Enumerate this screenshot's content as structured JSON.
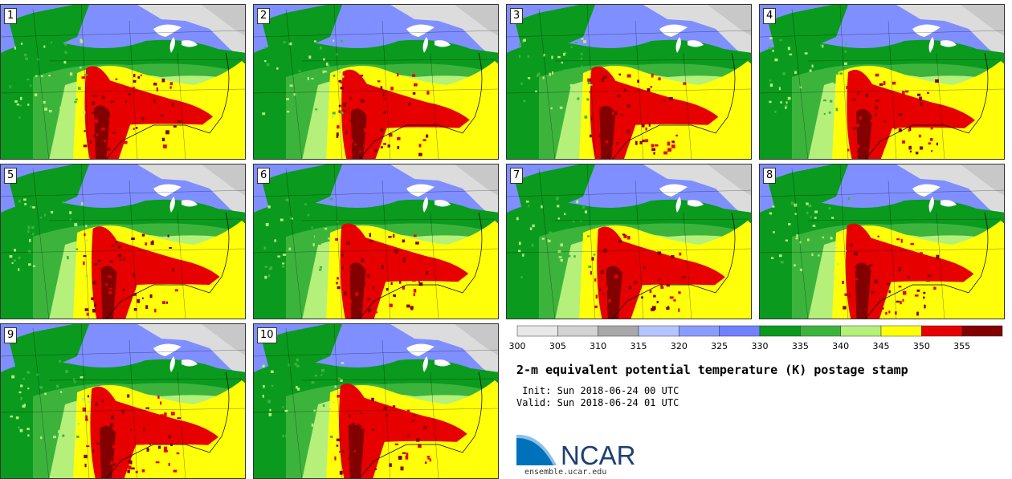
{
  "title": "2-m equivalent potential temperature (K) postage stamp",
  "init": " Init: Sun 2018-06-24 00 UTC",
  "valid": "Valid: Sun 2018-06-24 01 UTC",
  "logo": {
    "text": "NCAR",
    "url": "ensemble.ucar.edu"
  },
  "members": [
    "1",
    "2",
    "3",
    "4",
    "5",
    "6",
    "7",
    "8",
    "9",
    "10"
  ],
  "colorbar": {
    "ticks": [
      "300",
      "305",
      "310",
      "315",
      "320",
      "325",
      "330",
      "335",
      "340",
      "345",
      "350",
      "355"
    ],
    "colors": [
      "#e8e8e8",
      "#d3d3d3",
      "#a8a8a8",
      "#b4c4ff",
      "#8b9cff",
      "#7080ff",
      "#0a9a1e",
      "#3cb43c",
      "#b4f07a",
      "#ffff0a",
      "#e60000",
      "#820000"
    ]
  },
  "map_colors": {
    "cold": "#dcdcdc",
    "gray": "#a8a8a8",
    "lightblue": "#b4c4ff",
    "blue": "#7f8fff",
    "darkgreen": "#0a9a1e",
    "green": "#3cb43c",
    "lightgreen": "#b4f07a",
    "yellow": "#ffff0a",
    "red": "#e60000",
    "darkred": "#820000",
    "lake": "#ffffff"
  }
}
